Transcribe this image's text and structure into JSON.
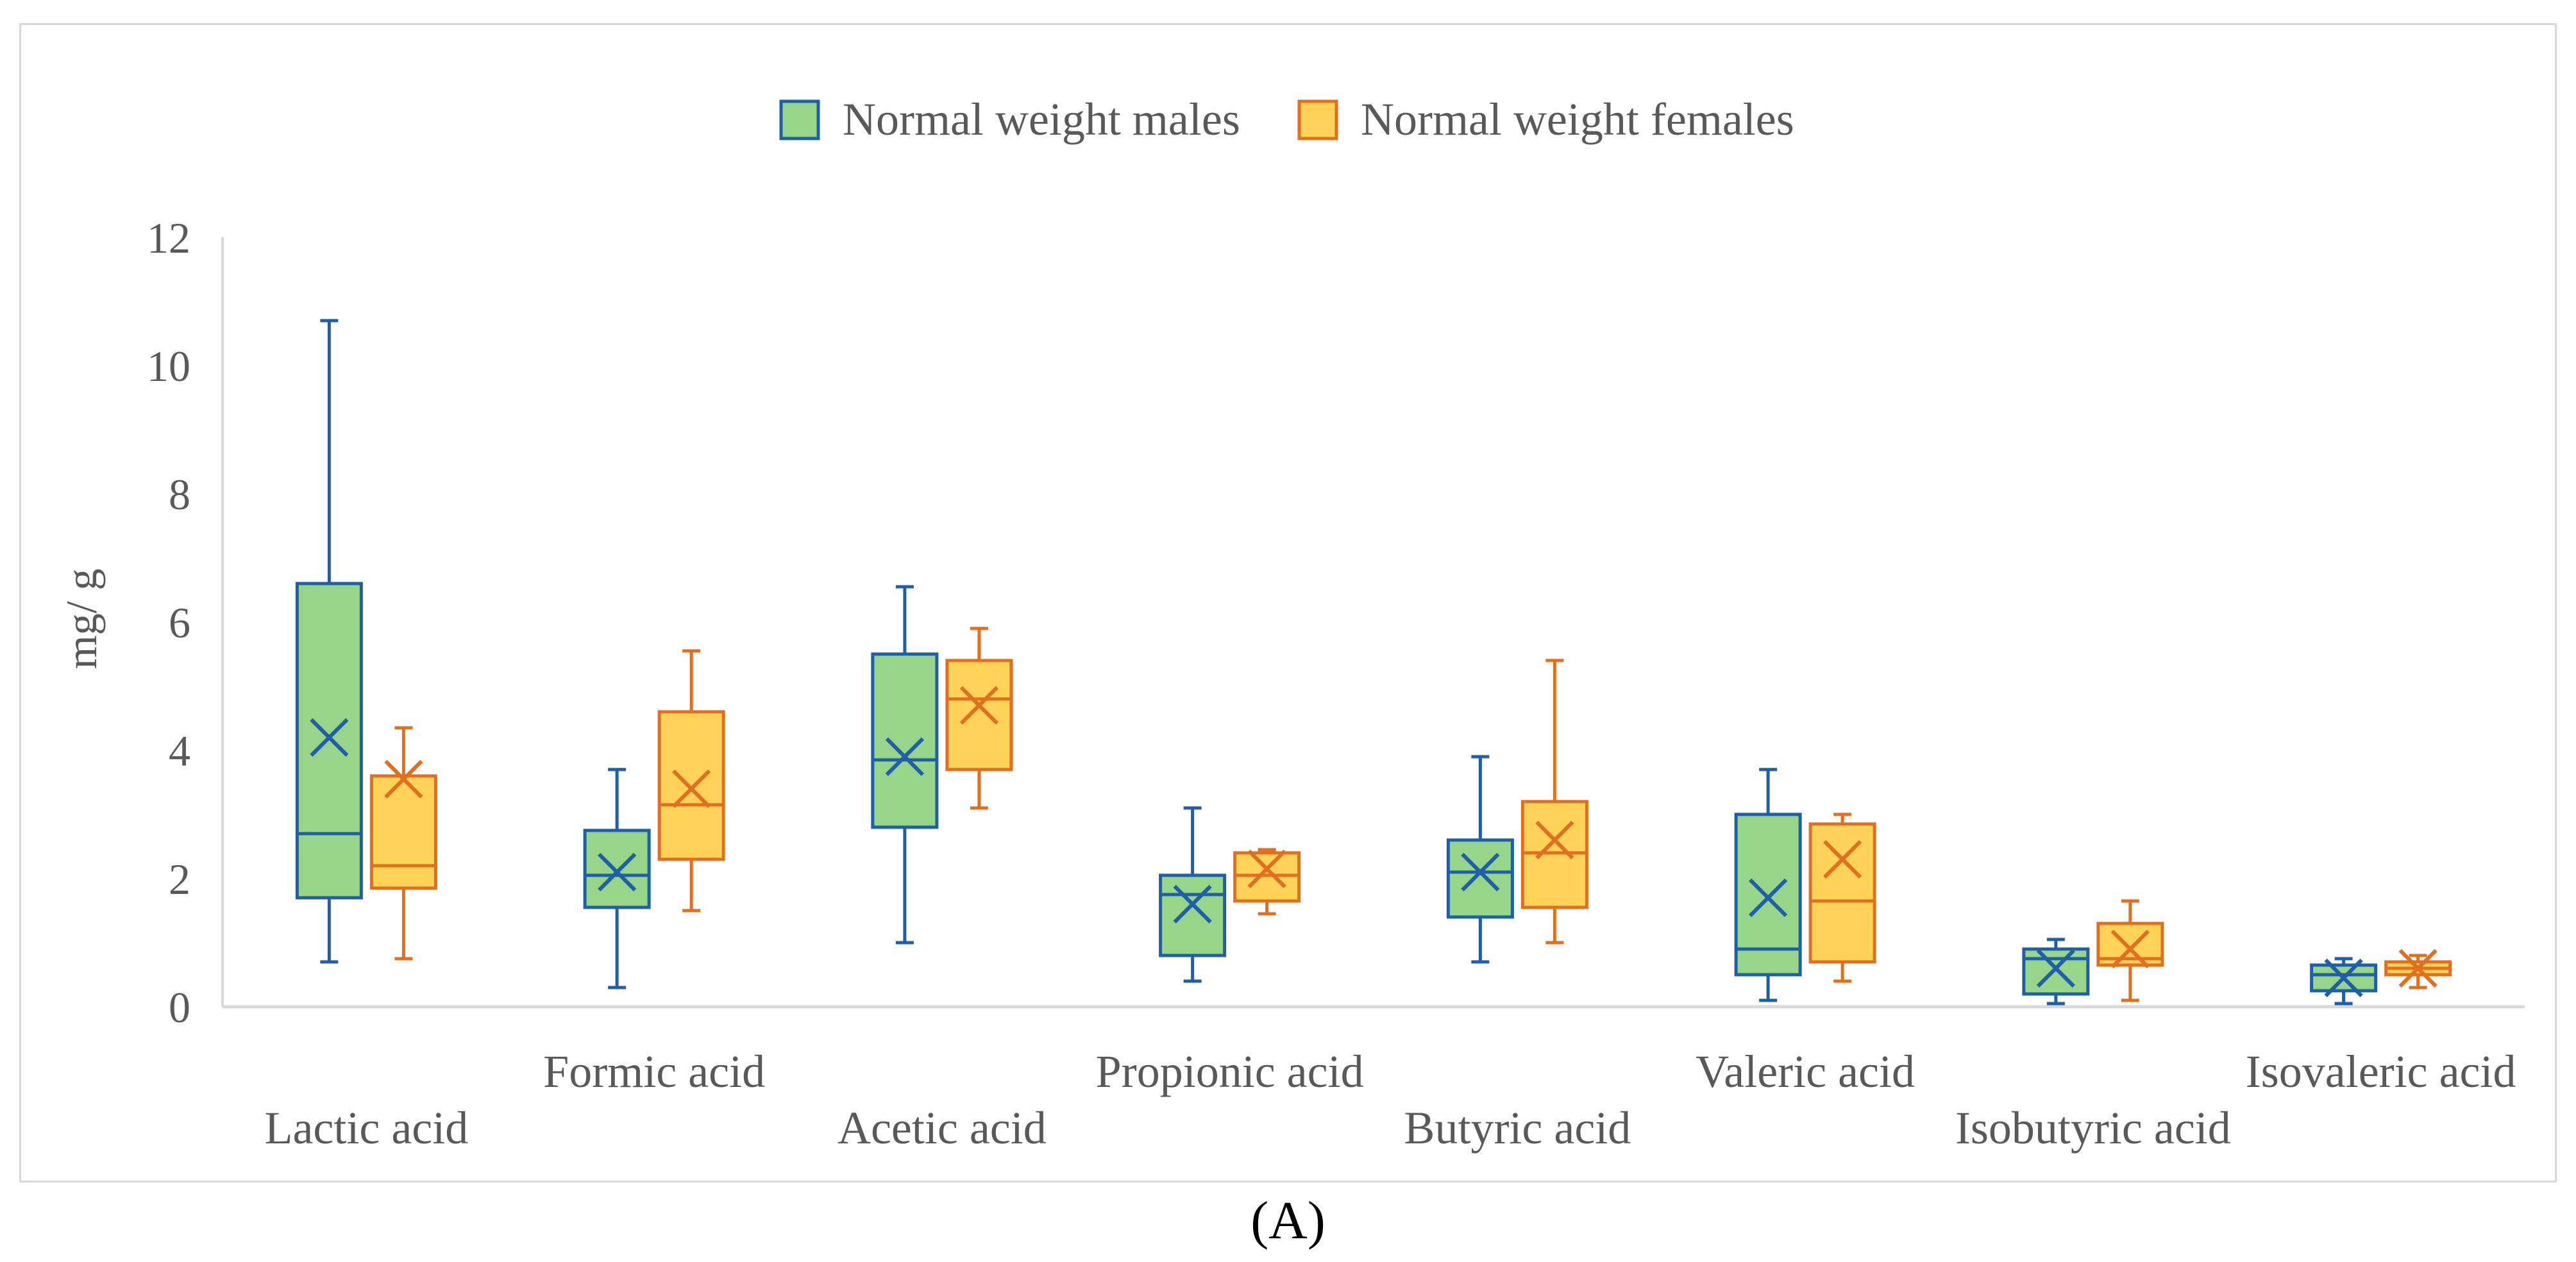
{
  "panel_label": "(A)",
  "colors": {
    "males_fill": "#97d68a",
    "males_stroke": "#1f5fa6",
    "females_fill": "#ffd357",
    "females_stroke": "#e07020",
    "axis": "#d9d9d9",
    "text": "#595959"
  },
  "chart_data": {
    "type": "boxplot",
    "title": "",
    "xlabel": "",
    "ylabel": "mg/ g",
    "ylim": [
      0,
      12
    ],
    "yticks": [
      0,
      2,
      4,
      6,
      8,
      10,
      12
    ],
    "grid": false,
    "legend_position": "top-center",
    "categories": [
      "Lactic acid",
      "Formic acid",
      "Acetic acid",
      "Propionic acid",
      "Butyric acid",
      "Valeric acid",
      "Isobutyric acid",
      "Isovaleric acid"
    ],
    "series": [
      {
        "name": "Normal weight males",
        "boxes": [
          {
            "min": 0.7,
            "q1": 1.7,
            "median": 2.7,
            "q3": 6.6,
            "max": 10.7,
            "mean": 4.2
          },
          {
            "min": 0.3,
            "q1": 1.55,
            "median": 2.05,
            "q3": 2.75,
            "max": 3.7,
            "mean": 2.1
          },
          {
            "min": 1.0,
            "q1": 2.8,
            "median": 3.85,
            "q3": 5.5,
            "max": 6.55,
            "mean": 3.9
          },
          {
            "min": 0.4,
            "q1": 0.8,
            "median": 1.75,
            "q3": 2.05,
            "max": 3.1,
            "mean": 1.6
          },
          {
            "min": 0.7,
            "q1": 1.4,
            "median": 2.1,
            "q3": 2.6,
            "max": 3.9,
            "mean": 2.1
          },
          {
            "min": 0.1,
            "q1": 0.5,
            "median": 0.9,
            "q3": 3.0,
            "max": 3.7,
            "mean": 1.7
          },
          {
            "min": 0.05,
            "q1": 0.2,
            "median": 0.75,
            "q3": 0.9,
            "max": 1.05,
            "mean": 0.6
          },
          {
            "min": 0.05,
            "q1": 0.25,
            "median": 0.5,
            "q3": 0.65,
            "max": 0.75,
            "mean": 0.45
          }
        ]
      },
      {
        "name": "Normal weight females",
        "boxes": [
          {
            "min": 0.75,
            "q1": 1.85,
            "median": 2.2,
            "q3": 3.6,
            "max": 4.35,
            "mean": 3.55
          },
          {
            "min": 1.5,
            "q1": 2.3,
            "median": 3.15,
            "q3": 4.6,
            "max": 5.55,
            "mean": 3.4
          },
          {
            "min": 3.1,
            "q1": 3.7,
            "median": 4.8,
            "q3": 5.4,
            "max": 5.9,
            "mean": 4.7
          },
          {
            "min": 1.45,
            "q1": 1.65,
            "median": 2.05,
            "q3": 2.4,
            "max": 2.45,
            "mean": 2.15
          },
          {
            "min": 1.0,
            "q1": 1.55,
            "median": 2.4,
            "q3": 3.2,
            "max": 5.4,
            "mean": 2.6
          },
          {
            "min": 0.4,
            "q1": 0.7,
            "median": 1.65,
            "q3": 2.85,
            "max": 3.0,
            "mean": 2.3
          },
          {
            "min": 0.1,
            "q1": 0.65,
            "median": 0.75,
            "q3": 1.3,
            "max": 1.65,
            "mean": 0.9
          },
          {
            "min": 0.3,
            "q1": 0.5,
            "median": 0.6,
            "q3": 0.7,
            "max": 0.8,
            "mean": 0.6
          }
        ]
      }
    ]
  }
}
